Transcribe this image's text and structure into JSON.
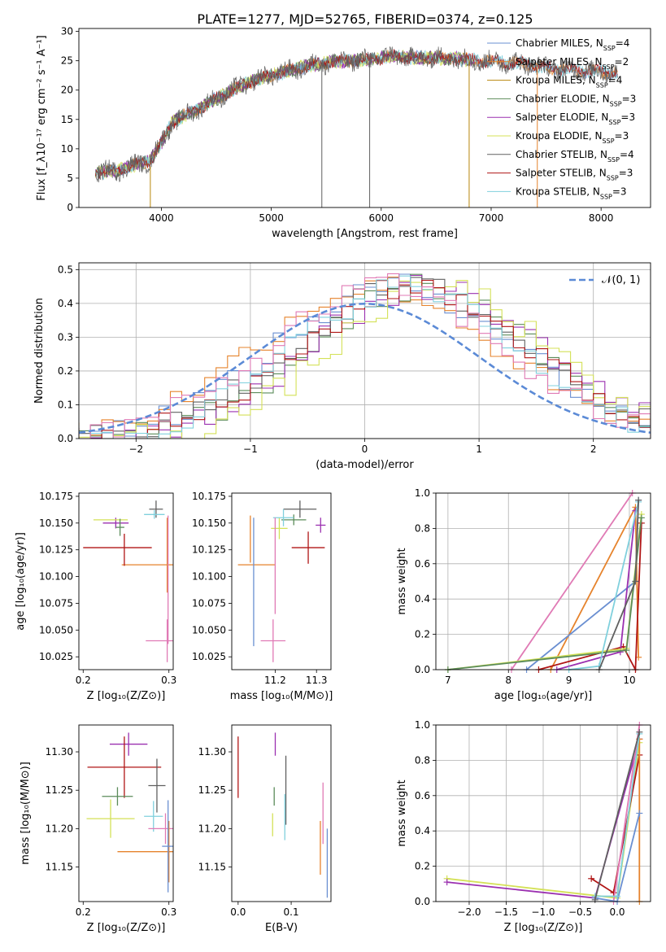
{
  "title": "PLATE=1277, MJD=52765, FIBERID=0374, z=0.125",
  "colors": {
    "Chabrier MILES": "#6a8fd1",
    "Salpeter MILES": "#e6832c",
    "Kroupa MILES": "#b8860b",
    "Chabrier ELODIE": "#5b8c5a",
    "Salpeter ELODIE": "#9b30b0",
    "Kroupa ELODIE": "#d4e157",
    "Chabrier STELIB": "#606060",
    "Salpeter STELIB": "#b01515",
    "Kroupa STELIB": "#80d0dd",
    "pink": "#e07ab5",
    "normal": "#5b8ad6"
  },
  "chart_data": [
    {
      "id": "spectrum",
      "type": "line",
      "xlabel": "wavelength [Angstrom, rest frame]",
      "ylabel": "Flux [f_λ10⁻¹⁷ erg cm⁻² s⁻¹ A⁻¹]",
      "xlim": [
        3250,
        8450
      ],
      "ylim": [
        0,
        30.5
      ],
      "xticks": [
        4000,
        5000,
        6000,
        7000,
        8000
      ],
      "yticks": [
        0,
        5,
        10,
        15,
        20,
        25,
        30
      ],
      "legend_position": "top-right",
      "legend": [
        {
          "label": "Chabrier MILES, N",
          "sub": "SSP",
          "suffix": "=4",
          "key": "Chabrier MILES"
        },
        {
          "label": "Salpeter MILES, N",
          "sub": "SSP",
          "suffix": "=2",
          "key": "Salpeter MILES"
        },
        {
          "label": "Kroupa MILES, N",
          "sub": "SSP",
          "suffix": "=4",
          "key": "Kroupa MILES"
        },
        {
          "label": "Chabrier ELODIE, N",
          "sub": "SSP",
          "suffix": "=3",
          "key": "Chabrier ELODIE"
        },
        {
          "label": "Salpeter ELODIE, N",
          "sub": "SSP",
          "suffix": "=3",
          "key": "Salpeter ELODIE"
        },
        {
          "label": "Kroupa ELODIE, N",
          "sub": "SSP",
          "suffix": "=3",
          "key": "Kroupa ELODIE"
        },
        {
          "label": "Chabrier STELIB, N",
          "sub": "SSP",
          "suffix": "=4",
          "key": "Chabrier STELIB"
        },
        {
          "label": "Salpeter STELIB, N",
          "sub": "SSP",
          "suffix": "=3",
          "key": "Salpeter STELIB"
        },
        {
          "label": "Kroupa STELIB, N",
          "sub": "SSP",
          "suffix": "=3",
          "key": "Kroupa STELIB"
        }
      ],
      "continuum": {
        "x": [
          3400,
          3600,
          3800,
          3900,
          4000,
          4100,
          4300,
          4500,
          4700,
          4900,
          5100,
          5300,
          5500,
          5700,
          5900,
          6100,
          6300,
          6500,
          6700,
          6900,
          7100,
          7300,
          7500,
          7700,
          7900,
          8150
        ],
        "y": [
          6,
          6.3,
          7.5,
          8,
          11,
          14.5,
          16.5,
          18.5,
          20.5,
          22,
          23,
          24,
          24.7,
          25,
          25.2,
          25.8,
          25.5,
          25.5,
          25.3,
          25,
          24.8,
          24.5,
          23.8,
          23.5,
          23.2,
          23
        ]
      },
      "spikes": [
        {
          "x": 3900,
          "ymin": 0,
          "ymax": 7,
          "series": "Kroupa MILES"
        },
        {
          "x": 5460,
          "ymin": 0,
          "ymax": 24,
          "series": "Chabrier STELIB"
        },
        {
          "x": 5895,
          "ymin": 0,
          "ymax": 25,
          "series": "Chabrier STELIB"
        },
        {
          "x": 6800,
          "ymin": 0,
          "ymax": 25,
          "series": "Kroupa MILES"
        },
        {
          "x": 7420,
          "ymin": 0,
          "ymax": 24,
          "series": "Salpeter MILES"
        }
      ]
    },
    {
      "id": "residuals",
      "type": "line",
      "xlabel": "(data-model)/error",
      "ylabel": "Normed distribution",
      "xlim": [
        -2.5,
        2.5
      ],
      "ylim": [
        0,
        0.52
      ],
      "xticks": [
        -2,
        -1,
        0,
        1,
        2
      ],
      "yticks": [
        0.0,
        0.1,
        0.2,
        0.3,
        0.4,
        0.5
      ],
      "legend_label": "𝒩(0, 1)",
      "legend_position": "top-right",
      "grid": true,
      "series": [
        {
          "key": "Chabrier MILES",
          "shift": 0.3,
          "sigma": 1.05
        },
        {
          "key": "Salpeter MILES",
          "shift": 0.1,
          "sigma": 1.05
        },
        {
          "key": "Chabrier ELODIE",
          "shift": 0.5,
          "sigma": 0.95
        },
        {
          "key": "Salpeter ELODIE",
          "shift": 0.55,
          "sigma": 1.0
        },
        {
          "key": "Kroupa ELODIE",
          "shift": 0.65,
          "sigma": 0.92
        },
        {
          "key": "Chabrier STELIB",
          "shift": 0.4,
          "sigma": 1.0
        },
        {
          "key": "Salpeter STELIB",
          "shift": 0.45,
          "sigma": 0.98
        },
        {
          "key": "Kroupa STELIB",
          "shift": 0.35,
          "sigma": 0.97
        },
        {
          "key": "pink",
          "shift": 0.2,
          "sigma": 1.0
        }
      ]
    },
    {
      "id": "age_vs_Z",
      "type": "scatter",
      "xlabel": "Z [log₁₀(Z/Z⊙)]",
      "ylabel": "age  [log₁₀(age/yr)]",
      "xlim": [
        0.195,
        0.305
      ],
      "ylim": [
        10.013,
        10.178
      ],
      "xticks": [
        0.2,
        0.3
      ],
      "yticks": [
        10.025,
        10.05,
        10.075,
        10.1,
        10.125,
        10.15,
        10.175
      ],
      "points": [
        {
          "x": 0.295,
          "y": 10.111,
          "xerr": 0.05,
          "yerr": 0.0,
          "key": "Salpeter MILES"
        },
        {
          "x": 0.24,
          "y": 10.127,
          "xerr": 0.04,
          "yerr": 0.0,
          "key": "Salpeter STELIB"
        },
        {
          "x": 0.248,
          "y": 10.125,
          "xerr": 0.0,
          "yerr": 0.015,
          "key": "Salpeter STELIB"
        },
        {
          "x": 0.238,
          "y": 10.15,
          "xerr": 0.015,
          "yerr": 0.005,
          "key": "Salpeter ELODIE"
        },
        {
          "x": 0.232,
          "y": 10.153,
          "xerr": 0.02,
          "yerr": 0.0,
          "key": "Kroupa ELODIE"
        },
        {
          "x": 0.243,
          "y": 10.146,
          "xerr": 0.005,
          "yerr": 0.008,
          "key": "Chabrier ELODIE"
        },
        {
          "x": 0.285,
          "y": 10.163,
          "xerr": 0.008,
          "yerr": 0.008,
          "key": "Chabrier STELIB"
        },
        {
          "x": 0.283,
          "y": 10.158,
          "xerr": 0.012,
          "yerr": 0.004,
          "key": "Kroupa STELIB"
        },
        {
          "x": 0.298,
          "y": 10.12,
          "xerr": 0.0,
          "yerr": 0.035,
          "key": "Salpeter MILES"
        },
        {
          "x": 0.298,
          "y": 10.04,
          "xerr": 0.025,
          "yerr": 0.02,
          "key": "pink"
        },
        {
          "x": 0.299,
          "y": 10.097,
          "xerr": 0.0,
          "yerr": 0.06,
          "key": "pink"
        }
      ]
    },
    {
      "id": "age_vs_mass",
      "type": "scatter",
      "xlabel": "mass [log₁₀(M/M⊙)]",
      "ylabel": "",
      "xlim": [
        11.095,
        11.335
      ],
      "ylim": [
        10.013,
        10.178
      ],
      "xticks": [
        11.2,
        11.3
      ],
      "yticks": [
        10.025,
        10.05,
        10.075,
        10.1,
        10.125,
        10.15,
        10.175
      ],
      "points": [
        {
          "x": 11.155,
          "y": 10.111,
          "xerr": 0.045,
          "yerr": 0.0,
          "key": "Salpeter MILES"
        },
        {
          "x": 11.14,
          "y": 10.135,
          "xerr": 0.0,
          "yerr": 0.022,
          "key": "Salpeter MILES"
        },
        {
          "x": 11.148,
          "y": 10.095,
          "xerr": 0.0,
          "yerr": 0.06,
          "key": "Chabrier MILES"
        },
        {
          "x": 11.28,
          "y": 10.127,
          "xerr": 0.04,
          "yerr": 0.015,
          "key": "Salpeter STELIB"
        },
        {
          "x": 11.31,
          "y": 10.148,
          "xerr": 0.012,
          "yerr": 0.007,
          "key": "Salpeter ELODIE"
        },
        {
          "x": 11.26,
          "y": 10.163,
          "xerr": 0.04,
          "yerr": 0.008,
          "key": "Chabrier STELIB"
        },
        {
          "x": 11.245,
          "y": 10.153,
          "xerr": 0.03,
          "yerr": 0.005,
          "key": "Chabrier ELODIE"
        },
        {
          "x": 11.21,
          "y": 10.145,
          "xerr": 0.02,
          "yerr": 0.01,
          "key": "Kroupa ELODIE"
        },
        {
          "x": 11.22,
          "y": 10.155,
          "xerr": 0.025,
          "yerr": 0.008,
          "key": "Kroupa STELIB"
        },
        {
          "x": 11.195,
          "y": 10.04,
          "xerr": 0.03,
          "yerr": 0.02,
          "key": "pink"
        },
        {
          "x": 11.2,
          "y": 10.11,
          "xerr": 0.0,
          "yerr": 0.045,
          "key": "pink"
        }
      ]
    },
    {
      "id": "massweight_vs_age",
      "type": "line",
      "xlabel": "age  [log₁₀(age/yr)]",
      "ylabel": "mass weight",
      "xlim": [
        6.8,
        10.35
      ],
      "ylim": [
        0,
        1.0
      ],
      "xticks": [
        7,
        8,
        9,
        10
      ],
      "yticks": [
        0.0,
        0.2,
        0.4,
        0.6,
        0.8,
        1.0
      ],
      "grid": true,
      "series": [
        {
          "key": "pink",
          "x": [
            8.05,
            10.05
          ],
          "y": [
            0.0,
            1.0
          ]
        },
        {
          "key": "Salpeter MILES",
          "x": [
            8.7,
            10.1,
            10.15
          ],
          "y": [
            0.0,
            0.92,
            0.07
          ]
        },
        {
          "key": "Chabrier MILES",
          "x": [
            8.3,
            10.1,
            10.15
          ],
          "y": [
            0.0,
            0.5,
            0.96
          ]
        },
        {
          "key": "Salpeter STELIB",
          "x": [
            8.5,
            9.9,
            10.1,
            10.2
          ],
          "y": [
            0.0,
            0.13,
            0.0,
            0.83
          ]
        },
        {
          "key": "Salpeter ELODIE",
          "x": [
            8.8,
            9.85,
            10.1
          ],
          "y": [
            0.0,
            0.1,
            0.9
          ]
        },
        {
          "key": "Kroupa ELODIE",
          "x": [
            7.0,
            9.95,
            10.2
          ],
          "y": [
            0.0,
            0.12,
            0.88
          ]
        },
        {
          "key": "Chabrier ELODIE",
          "x": [
            7.0,
            9.95,
            10.2
          ],
          "y": [
            0.0,
            0.11,
            0.86
          ]
        },
        {
          "key": "Kroupa STELIB",
          "x": [
            9.0,
            9.5,
            10.15
          ],
          "y": [
            0.0,
            0.02,
            0.95
          ]
        },
        {
          "key": "Chabrier STELIB",
          "x": [
            9.5,
            10.1,
            10.15
          ],
          "y": [
            0.0,
            0.5,
            0.96
          ]
        }
      ]
    },
    {
      "id": "mass_vs_Z",
      "type": "scatter",
      "xlabel": "Z [log₁₀(Z/Z⊙)]",
      "ylabel": "mass [log₁₀(M/M⊙)]",
      "xlim": [
        0.195,
        0.305
      ],
      "ylim": [
        11.105,
        11.335
      ],
      "xticks": [
        0.2,
        0.3
      ],
      "yticks": [
        11.15,
        11.2,
        11.25,
        11.3
      ],
      "points": [
        {
          "x": 0.253,
          "y": 11.31,
          "xerr": 0.022,
          "yerr": 0.015,
          "key": "Salpeter ELODIE"
        },
        {
          "x": 0.248,
          "y": 11.28,
          "xerr": 0.043,
          "yerr": 0.04,
          "key": "Salpeter STELIB"
        },
        {
          "x": 0.24,
          "y": 11.242,
          "xerr": 0.018,
          "yerr": 0.012,
          "key": "Chabrier ELODIE"
        },
        {
          "x": 0.232,
          "y": 11.213,
          "xerr": 0.028,
          "yerr": 0.025,
          "key": "Kroupa ELODIE"
        },
        {
          "x": 0.286,
          "y": 11.256,
          "xerr": 0.01,
          "yerr": 0.035,
          "key": "Chabrier STELIB"
        },
        {
          "x": 0.282,
          "y": 11.216,
          "xerr": 0.011,
          "yerr": 0.02,
          "key": "Kroupa STELIB"
        },
        {
          "x": 0.296,
          "y": 11.2,
          "xerr": 0.02,
          "yerr": 0.02,
          "key": "pink"
        },
        {
          "x": 0.3,
          "y": 11.17,
          "xerr": 0.06,
          "yerr": 0.04,
          "key": "Salpeter MILES"
        },
        {
          "x": 0.299,
          "y": 11.177,
          "xerr": 0.007,
          "yerr": 0.06,
          "key": "Chabrier MILES"
        }
      ]
    },
    {
      "id": "mass_vs_EBV",
      "type": "scatter",
      "xlabel": "E(B-V)",
      "ylabel": "",
      "xlim": [
        -0.012,
        0.175
      ],
      "ylim": [
        11.105,
        11.335
      ],
      "xticks": [
        0.0,
        0.1
      ],
      "yticks": [
        11.15,
        11.2,
        11.25,
        11.3
      ],
      "points": [
        {
          "x": 0.0,
          "y": 11.28,
          "xerr": 0.0,
          "yerr": 0.04,
          "key": "Salpeter STELIB"
        },
        {
          "x": 0.07,
          "y": 11.31,
          "xerr": 0.0,
          "yerr": 0.015,
          "key": "Salpeter ELODIE"
        },
        {
          "x": 0.068,
          "y": 11.242,
          "xerr": 0.0,
          "yerr": 0.012,
          "key": "Chabrier ELODIE"
        },
        {
          "x": 0.065,
          "y": 11.205,
          "xerr": 0.0,
          "yerr": 0.015,
          "key": "Kroupa ELODIE"
        },
        {
          "x": 0.09,
          "y": 11.25,
          "xerr": 0.0,
          "yerr": 0.045,
          "key": "Chabrier STELIB"
        },
        {
          "x": 0.088,
          "y": 11.215,
          "xerr": 0.0,
          "yerr": 0.03,
          "key": "Kroupa STELIB"
        },
        {
          "x": 0.16,
          "y": 11.22,
          "xerr": 0.0,
          "yerr": 0.04,
          "key": "pink"
        },
        {
          "x": 0.155,
          "y": 11.175,
          "xerr": 0.0,
          "yerr": 0.035,
          "key": "Salpeter MILES"
        },
        {
          "x": 0.168,
          "y": 11.155,
          "xerr": 0.0,
          "yerr": 0.045,
          "key": "Chabrier MILES"
        }
      ]
    },
    {
      "id": "massweight_vs_Z",
      "type": "line",
      "xlabel": "Z [log₁₀(Z/Z⊙)]",
      "ylabel": "mass weight",
      "xlim": [
        -2.45,
        0.45
      ],
      "ylim": [
        0,
        1.0
      ],
      "xticks": [
        -2.0,
        -1.5,
        -1.0,
        -0.5,
        0.0
      ],
      "yticks": [
        0.0,
        0.2,
        0.4,
        0.6,
        0.8,
        1.0
      ],
      "grid": true,
      "series": [
        {
          "key": "Kroupa ELODIE",
          "x": [
            -2.3,
            0.0,
            0.3
          ],
          "y": [
            0.13,
            0.02,
            0.9
          ]
        },
        {
          "key": "Salpeter ELODIE",
          "x": [
            -2.3,
            -0.3,
            0.3
          ],
          "y": [
            0.11,
            0.02,
            0.92
          ]
        },
        {
          "key": "Salpeter STELIB",
          "x": [
            -0.35,
            -0.05,
            0.3
          ],
          "y": [
            0.13,
            0.05,
            0.83
          ]
        },
        {
          "key": "pink",
          "x": [
            -0.05,
            0.3
          ],
          "y": [
            0.0,
            1.0
          ]
        },
        {
          "key": "Salpeter MILES",
          "x": [
            0.3,
            0.3
          ],
          "y": [
            0.0,
            0.92
          ]
        },
        {
          "key": "Chabrier MILES",
          "x": [
            -0.3,
            0.0,
            0.3
          ],
          "y": [
            0.02,
            0.0,
            0.5
          ]
        },
        {
          "key": "Kroupa STELIB",
          "x": [
            -0.3,
            0.0,
            0.3
          ],
          "y": [
            0.03,
            0.03,
            0.95
          ]
        },
        {
          "key": "Chabrier STELIB",
          "x": [
            -0.3,
            0.3
          ],
          "y": [
            0.01,
            0.96
          ]
        }
      ]
    }
  ]
}
